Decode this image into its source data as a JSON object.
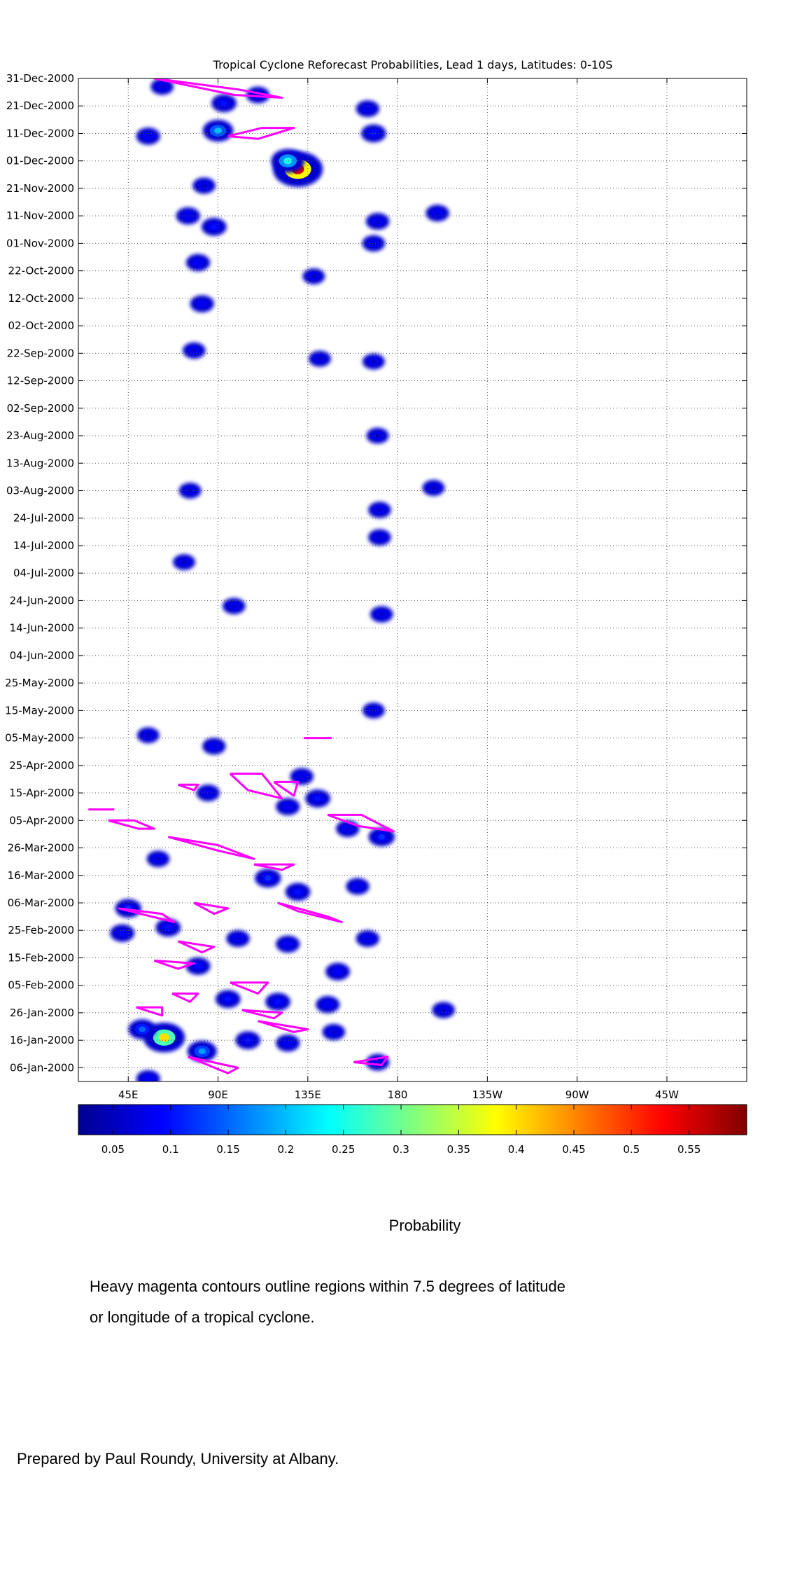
{
  "chart_data": {
    "type": "heatmap",
    "title": "Tropical Cyclone Reforecast Probabilities, Lead 1 days, Latitudes: 0-10S",
    "x_ticks": [
      "45E",
      "90E",
      "135E",
      "180",
      "135W",
      "90W",
      "45W"
    ],
    "x_tick_values": [
      45,
      90,
      135,
      180,
      225,
      270,
      315
    ],
    "xlim": [
      20,
      355
    ],
    "y_ticks": [
      "31-Dec-2000",
      "21-Dec-2000",
      "11-Dec-2000",
      "01-Dec-2000",
      "21-Nov-2000",
      "11-Nov-2000",
      "01-Nov-2000",
      "22-Oct-2000",
      "12-Oct-2000",
      "02-Oct-2000",
      "22-Sep-2000",
      "12-Sep-2000",
      "02-Sep-2000",
      "23-Aug-2000",
      "13-Aug-2000",
      "03-Aug-2000",
      "24-Jul-2000",
      "14-Jul-2000",
      "04-Jul-2000",
      "24-Jun-2000",
      "14-Jun-2000",
      "04-Jun-2000",
      "25-May-2000",
      "15-May-2000",
      "05-May-2000",
      "25-Apr-2000",
      "15-Apr-2000",
      "05-Apr-2000",
      "26-Mar-2000",
      "16-Mar-2000",
      "06-Mar-2000",
      "25-Feb-2000",
      "15-Feb-2000",
      "05-Feb-2000",
      "26-Jan-2000",
      "16-Jan-2000",
      "06-Jan-2000"
    ],
    "ylim": [
      "01-Jan-2000",
      "31-Dec-2000"
    ],
    "grid": true,
    "colorbar": {
      "label": "Probability",
      "ticks": [
        "0.05",
        "0.1",
        "0.15",
        "0.2",
        "0.25",
        "0.3",
        "0.35",
        "0.4",
        "0.45",
        "0.5",
        "0.55"
      ],
      "tick_values": [
        0.05,
        0.1,
        0.15,
        0.2,
        0.25,
        0.3,
        0.35,
        0.4,
        0.45,
        0.5,
        0.55
      ],
      "range": [
        0.02,
        0.6
      ]
    },
    "blobs": [
      {
        "lon": 62,
        "date": "2000-12-28",
        "p": 0.06
      },
      {
        "lon": 93,
        "date": "2000-12-22",
        "p": 0.1
      },
      {
        "lon": 90,
        "date": "2000-12-12",
        "p": 0.2
      },
      {
        "lon": 55,
        "date": "2000-12-10",
        "p": 0.08
      },
      {
        "lon": 110,
        "date": "2000-12-25",
        "p": 0.07
      },
      {
        "lon": 165,
        "date": "2000-12-20",
        "p": 0.07
      },
      {
        "lon": 168,
        "date": "2000-12-11",
        "p": 0.1
      },
      {
        "lon": 130,
        "date": "2000-11-28",
        "p": 0.55
      },
      {
        "lon": 125,
        "date": "2000-12-01",
        "p": 0.25
      },
      {
        "lon": 83,
        "date": "2000-11-22",
        "p": 0.06
      },
      {
        "lon": 88,
        "date": "2000-11-07",
        "p": 0.1
      },
      {
        "lon": 75,
        "date": "2000-11-11",
        "p": 0.08
      },
      {
        "lon": 80,
        "date": "2000-10-25",
        "p": 0.08
      },
      {
        "lon": 82,
        "date": "2000-10-10",
        "p": 0.08
      },
      {
        "lon": 170,
        "date": "2000-11-09",
        "p": 0.07
      },
      {
        "lon": 168,
        "date": "2000-11-01",
        "p": 0.06
      },
      {
        "lon": 200,
        "date": "2000-11-12",
        "p": 0.07
      },
      {
        "lon": 138,
        "date": "2000-10-20",
        "p": 0.05
      },
      {
        "lon": 78,
        "date": "2000-09-23",
        "p": 0.06
      },
      {
        "lon": 141,
        "date": "2000-09-20",
        "p": 0.05
      },
      {
        "lon": 168,
        "date": "2000-09-19",
        "p": 0.05
      },
      {
        "lon": 170,
        "date": "2000-08-23",
        "p": 0.05
      },
      {
        "lon": 76,
        "date": "2000-08-03",
        "p": 0.05
      },
      {
        "lon": 198,
        "date": "2000-08-04",
        "p": 0.05
      },
      {
        "lon": 171,
        "date": "2000-07-27",
        "p": 0.06
      },
      {
        "lon": 171,
        "date": "2000-07-17",
        "p": 0.06
      },
      {
        "lon": 73,
        "date": "2000-07-08",
        "p": 0.05
      },
      {
        "lon": 98,
        "date": "2000-06-22",
        "p": 0.06
      },
      {
        "lon": 172,
        "date": "2000-06-19",
        "p": 0.06
      },
      {
        "lon": 168,
        "date": "2000-05-15",
        "p": 0.05
      },
      {
        "lon": 55,
        "date": "2000-05-06",
        "p": 0.05
      },
      {
        "lon": 88,
        "date": "2000-05-02",
        "p": 0.07
      },
      {
        "lon": 132,
        "date": "2000-04-21",
        "p": 0.07
      },
      {
        "lon": 140,
        "date": "2000-04-13",
        "p": 0.1
      },
      {
        "lon": 125,
        "date": "2000-04-10",
        "p": 0.08
      },
      {
        "lon": 85,
        "date": "2000-04-15",
        "p": 0.07
      },
      {
        "lon": 155,
        "date": "2000-04-02",
        "p": 0.07
      },
      {
        "lon": 172,
        "date": "2000-03-30",
        "p": 0.12
      },
      {
        "lon": 115,
        "date": "2000-03-15",
        "p": 0.12
      },
      {
        "lon": 130,
        "date": "2000-03-10",
        "p": 0.1
      },
      {
        "lon": 60,
        "date": "2000-03-22",
        "p": 0.06
      },
      {
        "lon": 160,
        "date": "2000-03-12",
        "p": 0.07
      },
      {
        "lon": 45,
        "date": "2000-03-04",
        "p": 0.12
      },
      {
        "lon": 65,
        "date": "2000-02-26",
        "p": 0.1
      },
      {
        "lon": 42,
        "date": "2000-02-24",
        "p": 0.09
      },
      {
        "lon": 100,
        "date": "2000-02-22",
        "p": 0.07
      },
      {
        "lon": 125,
        "date": "2000-02-20",
        "p": 0.08
      },
      {
        "lon": 150,
        "date": "2000-02-10",
        "p": 0.09
      },
      {
        "lon": 165,
        "date": "2000-02-22",
        "p": 0.07
      },
      {
        "lon": 80,
        "date": "2000-02-12",
        "p": 0.09
      },
      {
        "lon": 95,
        "date": "2000-01-31",
        "p": 0.1
      },
      {
        "lon": 120,
        "date": "2000-01-30",
        "p": 0.1
      },
      {
        "lon": 145,
        "date": "2000-01-29",
        "p": 0.08
      },
      {
        "lon": 63,
        "date": "2000-01-17",
        "p": 0.4
      },
      {
        "lon": 52,
        "date": "2000-01-20",
        "p": 0.15
      },
      {
        "lon": 82,
        "date": "2000-01-12",
        "p": 0.18
      },
      {
        "lon": 105,
        "date": "2000-01-16",
        "p": 0.1
      },
      {
        "lon": 125,
        "date": "2000-01-15",
        "p": 0.08
      },
      {
        "lon": 148,
        "date": "2000-01-19",
        "p": 0.06
      },
      {
        "lon": 170,
        "date": "2000-01-08",
        "p": 0.07
      },
      {
        "lon": 55,
        "date": "2000-01-02",
        "p": 0.08
      },
      {
        "lon": 203,
        "date": "2000-01-27",
        "p": 0.06
      }
    ],
    "tc_contours": [
      {
        "lon": [
          25,
          38
        ],
        "date": [
          "2000-04-09",
          "2000-04-09"
        ]
      },
      {
        "lon": [
          35,
          48,
          58,
          50,
          35
        ],
        "date": [
          "2000-04-05",
          "2000-04-05",
          "2000-04-02",
          "2000-04-02",
          "2000-04-05"
        ]
      },
      {
        "lon": [
          65,
          90,
          108,
          90,
          65
        ],
        "date": [
          "2000-03-30",
          "2000-03-27",
          "2000-03-22",
          "2000-03-25",
          "2000-03-30"
        ]
      },
      {
        "lon": [
          58,
          98,
          122,
          100,
          58
        ],
        "date": [
          "2000-12-31",
          "2000-12-25",
          "2000-12-24",
          "2000-12-27",
          "2000-12-31"
        ]
      },
      {
        "lon": [
          95,
          112,
          128,
          110,
          95
        ],
        "date": [
          "2000-12-10",
          "2000-12-13",
          "2000-12-13",
          "2000-12-09",
          "2000-12-10"
        ]
      },
      {
        "lon": [
          145,
          162,
          178,
          160,
          145
        ],
        "date": [
          "2000-04-07",
          "2000-04-07",
          "2000-04-01",
          "2000-04-03",
          "2000-04-07"
        ]
      },
      {
        "lon": [
          96,
          112,
          122,
          105,
          96
        ],
        "date": [
          "2000-04-22",
          "2000-04-22",
          "2000-04-13",
          "2000-04-16",
          "2000-04-22"
        ]
      },
      {
        "lon": [
          118,
          130,
          128,
          118
        ],
        "date": [
          "2000-04-19",
          "2000-04-19",
          "2000-04-14",
          "2000-04-19"
        ]
      },
      {
        "lon": [
          70,
          80,
          78,
          70
        ],
        "date": [
          "2000-04-18",
          "2000-04-18",
          "2000-04-16",
          "2000-04-18"
        ]
      },
      {
        "lon": [
          108,
          128,
          122,
          108
        ],
        "date": [
          "2000-03-20",
          "2000-03-20",
          "2000-03-18",
          "2000-03-20"
        ]
      },
      {
        "lon": [
          40,
          68,
          62,
          40
        ],
        "date": [
          "2000-03-04",
          "2000-02-28",
          "2000-03-02",
          "2000-03-04"
        ]
      },
      {
        "lon": [
          78,
          95,
          88,
          78
        ],
        "date": [
          "2000-03-06",
          "2000-03-04",
          "2000-03-02",
          "2000-03-06"
        ]
      },
      {
        "lon": [
          120,
          145,
          152,
          130,
          120
        ],
        "date": [
          "2000-03-06",
          "2000-03-01",
          "2000-02-28",
          "2000-03-03",
          "2000-03-06"
        ]
      },
      {
        "lon": [
          70,
          88,
          82,
          70
        ],
        "date": [
          "2000-02-21",
          "2000-02-19",
          "2000-02-17",
          "2000-02-21"
        ]
      },
      {
        "lon": [
          58,
          78,
          70,
          58
        ],
        "date": [
          "2000-02-14",
          "2000-02-13",
          "2000-02-11",
          "2000-02-14"
        ]
      },
      {
        "lon": [
          96,
          115,
          110,
          96
        ],
        "date": [
          "2000-02-06",
          "2000-02-06",
          "2000-02-02",
          "2000-02-06"
        ]
      },
      {
        "lon": [
          67,
          80,
          76,
          67
        ],
        "date": [
          "2000-02-02",
          "2000-02-02",
          "2000-01-30",
          "2000-02-02"
        ]
      },
      {
        "lon": [
          49,
          62,
          62,
          49
        ],
        "date": [
          "2000-01-28",
          "2000-01-28",
          "2000-01-25",
          "2000-01-28"
        ]
      },
      {
        "lon": [
          102,
          122,
          118,
          102
        ],
        "date": [
          "2000-01-27",
          "2000-01-26",
          "2000-01-24",
          "2000-01-27"
        ]
      },
      {
        "lon": [
          110,
          135,
          128,
          110
        ],
        "date": [
          "2000-01-23",
          "2000-01-20",
          "2000-01-19",
          "2000-01-23"
        ]
      },
      {
        "lon": [
          75,
          100,
          95,
          75
        ],
        "date": [
          "2000-01-10",
          "2000-01-06",
          "2000-01-04",
          "2000-01-10"
        ]
      },
      {
        "lon": [
          158,
          175,
          172,
          158
        ],
        "date": [
          "2000-01-08",
          "2000-01-10",
          "2000-01-07",
          "2000-01-08"
        ]
      },
      {
        "lon": [
          133,
          147
        ],
        "date": [
          "2000-05-05",
          "2000-05-05"
        ]
      }
    ]
  },
  "caption": {
    "colorbar_label": "Probability",
    "note_line1": "Heavy magenta contours outline regions within 7.5 degrees of latitude",
    "note_line2": "or longitude of a tropical cyclone.",
    "credit": "Prepared by Paul Roundy, University at Albany."
  },
  "colors": {
    "contour": "#ff00ff",
    "grid": "#555555",
    "colormap": [
      "#00008f",
      "#0000ff",
      "#00ffff",
      "#ffff00",
      "#ff0000",
      "#800000"
    ]
  }
}
